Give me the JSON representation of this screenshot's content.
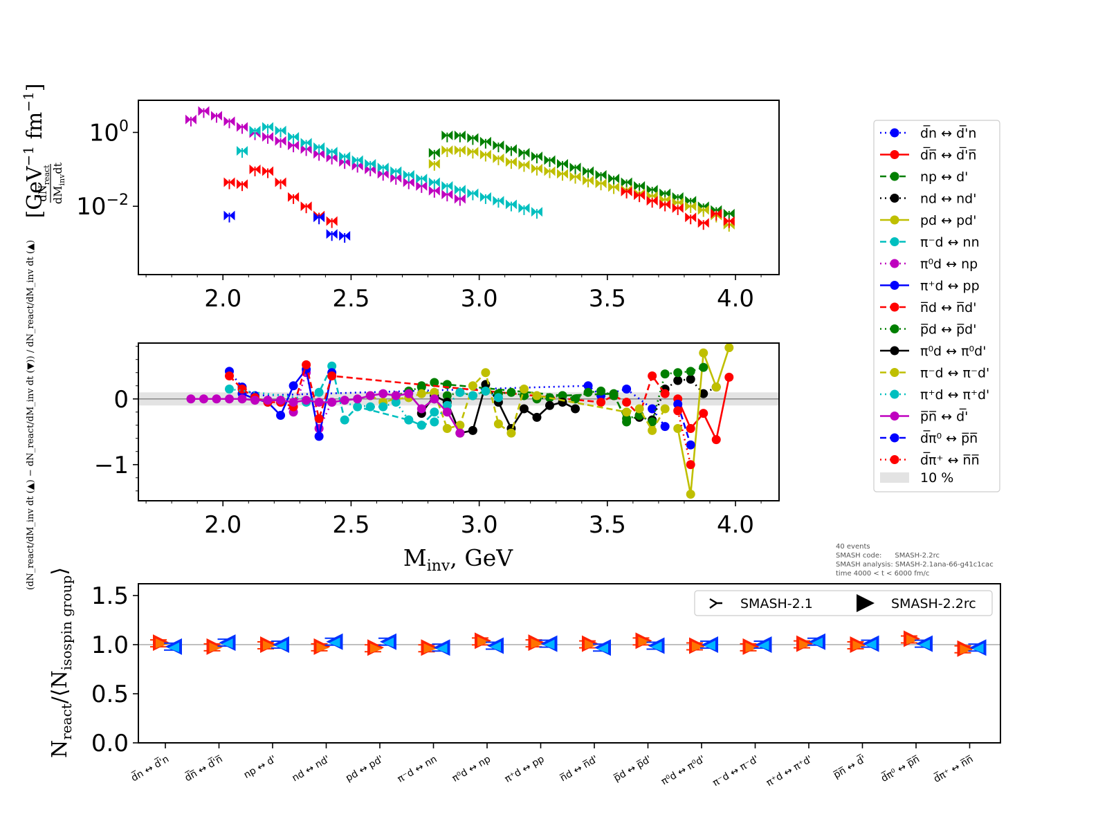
{
  "chart_data": [
    {
      "type": "scatter",
      "panel": "top",
      "ylabel": "dN_react/(dM_inv dt) [GeV^-1 fm^-1]",
      "ylabel_text": {
        "prefix_num": "dN",
        "num_sub": "react",
        "den_a": "dM",
        "den_sub": "inv",
        "den_b": "dt",
        "unit": "[GeV",
        "unit_exp": "−1",
        "unit_mid": " fm",
        "unit_exp2": "−1",
        "unit_end": "]"
      },
      "yscale": "log",
      "xlim": [
        1.67,
        4.17
      ],
      "ylim_log10": [
        -3.85,
        0.87
      ],
      "xticks": [
        "2.0",
        "2.5",
        "3.0",
        "3.5",
        "4.0"
      ],
      "yticks": [
        {
          "base": "10",
          "exp": "0",
          "value": 0
        },
        {
          "base": "10",
          "exp": "−2",
          "value": -2
        }
      ],
      "series": [
        {
          "x": [
            1.875,
            1.925,
            1.975,
            2.025,
            2.075,
            2.125,
            2.175,
            2.225,
            2.275,
            2.325,
            2.375,
            2.425,
            2.475,
            2.525,
            2.575,
            2.625,
            2.675,
            2.725,
            2.775,
            2.825,
            2.875,
            2.925
          ],
          "log10y": [
            0.35,
            0.58,
            0.45,
            0.3,
            0.15,
            -0.02,
            -0.12,
            -0.23,
            -0.35,
            -0.45,
            -0.58,
            -0.68,
            -0.8,
            -0.9,
            -1.0,
            -1.12,
            -1.23,
            -1.35,
            -1.45,
            -1.58,
            -1.68,
            -1.8
          ],
          "color": "#bf00bf"
        },
        {
          "x": [
            2.075,
            2.125,
            2.175,
            2.225,
            2.275,
            2.325,
            2.375,
            2.425,
            2.475,
            2.525,
            2.575,
            2.625,
            2.675,
            2.725,
            2.775,
            2.825,
            2.875,
            2.925,
            2.975,
            3.025,
            3.075,
            3.125,
            3.175,
            3.225
          ],
          "log10y": [
            -0.5,
            0.05,
            0.15,
            0.05,
            -0.12,
            -0.28,
            -0.4,
            -0.52,
            -0.65,
            -0.75,
            -0.85,
            -0.95,
            -1.05,
            -1.15,
            -1.25,
            -1.35,
            -1.45,
            -1.55,
            -1.65,
            -1.75,
            -1.85,
            -1.95,
            -2.05,
            -2.15
          ],
          "color": "#00bfbf"
        },
        {
          "x": [
            2.025,
            2.075,
            2.125,
            2.175,
            2.225,
            2.275,
            2.325,
            2.375,
            2.425
          ],
          "log10y": [
            -1.35,
            -1.4,
            -1.0,
            -1.05,
            -1.35,
            -1.75,
            -2.0,
            -2.25,
            -2.4
          ],
          "color": "#ff0000"
        },
        {
          "x": [
            2.025,
            2.375,
            2.425,
            2.475
          ],
          "log10y": [
            -2.25,
            -2.3,
            -2.75,
            -2.8
          ],
          "color": "#0000ff"
        },
        {
          "x": [
            2.825,
            2.875,
            2.925,
            2.975,
            3.025,
            3.075,
            3.125,
            3.175,
            3.225,
            3.275,
            3.325,
            3.375,
            3.425,
            3.475,
            3.525,
            3.575,
            3.625,
            3.675,
            3.725,
            3.775,
            3.825,
            3.875,
            3.925,
            3.975
          ],
          "log10y": [
            -0.55,
            -0.08,
            -0.08,
            -0.15,
            -0.25,
            -0.35,
            -0.45,
            -0.55,
            -0.65,
            -0.75,
            -0.85,
            -0.95,
            -1.05,
            -1.15,
            -1.25,
            -1.35,
            -1.45,
            -1.55,
            -1.65,
            -1.75,
            -1.85,
            -2.0,
            -2.1,
            -2.2
          ],
          "color": "#007f00"
        },
        {
          "x": [
            2.825,
            2.875,
            2.925,
            2.975,
            3.025,
            3.075,
            3.125,
            3.175,
            3.225,
            3.275,
            3.325,
            3.375,
            3.425,
            3.475,
            3.525,
            3.575,
            3.625,
            3.675,
            3.725,
            3.775,
            3.825,
            3.875,
            3.925,
            3.975
          ],
          "log10y": [
            -0.85,
            -0.48,
            -0.48,
            -0.52,
            -0.6,
            -0.7,
            -0.8,
            -0.88,
            -0.98,
            -1.05,
            -1.12,
            -1.2,
            -1.3,
            -1.38,
            -1.48,
            -1.55,
            -1.65,
            -1.72,
            -1.82,
            -1.9,
            -2.0,
            -2.1,
            -2.25,
            -2.5
          ],
          "color": "#bfbf00"
        },
        {
          "x": [
            3.575,
            3.625,
            3.675,
            3.725,
            3.775,
            3.825,
            3.875,
            3.925,
            3.975
          ],
          "log10y": [
            -1.6,
            -1.7,
            -1.85,
            -1.95,
            -2.05,
            -2.3,
            -2.45,
            -2.2,
            -2.4
          ],
          "color": "#ff0000"
        }
      ]
    },
    {
      "type": "line",
      "panel": "middle",
      "ylabel": "(dN_react/dM_inv dt (▲) − dN_react/dM_inv dt (▼)) / dN_react/dM_inv dt (▲)",
      "xlabel_main": "M",
      "xlabel_sub": "inv",
      "xlabel_rest": ", GeV",
      "xlim": [
        1.67,
        4.17
      ],
      "ylim": [
        -1.55,
        0.85
      ],
      "xticks": [
        "2.0",
        "2.5",
        "3.0",
        "3.5",
        "4.0"
      ],
      "yticks": [
        {
          "label": "0",
          "value": 0
        },
        {
          "label": "−1",
          "value": -1
        }
      ],
      "band": [
        -0.1,
        0.1
      ],
      "series": [
        {
          "name": "d̅n ↔ d̅'n",
          "color": "#0000ff",
          "dash": "2,5",
          "x": [
            2.025,
            2.075,
            2.125,
            3.425,
            3.475,
            3.575,
            3.675,
            3.725
          ],
          "y": [
            0.42,
            0.18,
            0.05,
            0.2,
            0.05,
            0.15,
            -0.15,
            -0.42
          ]
        },
        {
          "name": "d̅n̅ ↔ d̅'n̅",
          "color": "#ff0000",
          "dash": "",
          "x": [
            3.775,
            3.825,
            3.875,
            3.925,
            3.975
          ],
          "y": [
            0.0,
            -0.45,
            -0.22,
            -0.62,
            0.33
          ]
        },
        {
          "name": "np ↔ d'",
          "color": "#007f00",
          "dash": "9,5",
          "x": [
            2.775,
            2.825,
            2.875,
            3.325,
            3.525,
            3.575,
            3.625
          ],
          "y": [
            0.2,
            0.25,
            0.22,
            0.05,
            0.08,
            -0.35,
            -0.25
          ]
        },
        {
          "name": "nd ↔ nd'",
          "color": "#000000",
          "dash": "2,5",
          "x": [
            3.625,
            3.675,
            3.725,
            3.775,
            3.825,
            3.875,
            3.925
          ],
          "y": [
            -0.28,
            -0.32,
            0.15,
            0.28,
            0.3,
            0.08,
            0.18
          ]
        },
        {
          "name": "pd ↔ pd'",
          "color": "#bfbf00",
          "dash": "",
          "x": [
            3.775,
            3.825,
            3.875,
            3.925,
            3.975
          ],
          "y": [
            -0.45,
            -1.45,
            0.7,
            0.18,
            0.78
          ]
        },
        {
          "name": "π⁻d ↔ nn",
          "color": "#00bfbf",
          "dash": "9,5",
          "x": [
            2.325,
            2.375,
            2.425,
            2.475,
            2.525,
            2.725,
            2.775,
            2.825
          ],
          "y": [
            -0.05,
            0.1,
            0.5,
            -0.32,
            -0.12,
            -0.32,
            -0.4,
            -0.2
          ]
        },
        {
          "name": "π⁰d ↔ np",
          "color": "#bf00bf",
          "dash": "2,5",
          "x": [
            2.225,
            2.275,
            2.325,
            2.375,
            2.425
          ],
          "y": [
            -0.05,
            -0.2,
            0.4,
            -0.45,
            -0.05
          ]
        },
        {
          "name": "π⁺d ↔ pp",
          "color": "#0000ff",
          "dash": "",
          "x": [
            2.075,
            2.125,
            2.175,
            2.225,
            2.275,
            2.325,
            2.375,
            2.425
          ],
          "y": [
            0.08,
            0.0,
            -0.05,
            -0.25,
            0.2,
            0.45,
            -0.57,
            0.4
          ]
        },
        {
          "name": "n̅d ↔ n̅d'",
          "color": "#ff0000",
          "dash": "9,5",
          "x": [
            2.025,
            2.075,
            2.125,
            2.175,
            2.225,
            2.275,
            2.325,
            2.375,
            2.425,
            3.475,
            3.525,
            3.575,
            3.625,
            3.675,
            3.725
          ],
          "y": [
            0.35,
            0.15,
            0.02,
            -0.05,
            -0.05,
            -0.12,
            0.52,
            -0.3,
            0.35,
            -0.05,
            0.05,
            -0.05,
            -0.25,
            0.35,
            0.08
          ]
        },
        {
          "name": "p̅d ↔ p̅d'",
          "color": "#007f00",
          "dash": "2,5",
          "x": [
            2.675,
            2.725,
            2.775,
            2.825,
            2.875,
            2.925,
            2.975,
            3.025,
            3.075,
            3.125,
            3.175,
            3.225,
            3.275,
            3.325,
            3.375,
            3.425,
            3.475,
            3.525,
            3.575,
            3.625,
            3.675,
            3.725,
            3.775,
            3.825,
            3.875
          ],
          "y": [
            0.05,
            0.12,
            0.18,
            0.0,
            0.05,
            0.1,
            0.05,
            0.12,
            0.08,
            0.1,
            0.05,
            0.0,
            0.02,
            0.05,
            0.0,
            0.1,
            0.12,
            0.05,
            -0.3,
            -0.25,
            -0.35,
            0.38,
            0.4,
            0.42,
            0.48
          ]
        },
        {
          "name": "π⁰d ↔ π⁰d'",
          "color": "#000000",
          "dash": "",
          "x": [
            2.775,
            2.825,
            2.875,
            2.925,
            2.975,
            3.025,
            3.075,
            3.125,
            3.175,
            3.225,
            3.275,
            3.325,
            3.375
          ],
          "y": [
            -0.22,
            0.05,
            -0.05,
            -0.52,
            -0.48,
            0.22,
            -0.05,
            -0.45,
            -0.15,
            -0.28,
            -0.1,
            -0.05,
            -0.15
          ]
        },
        {
          "name": "π⁻d ↔ π⁻d'",
          "color": "#bfbf00",
          "dash": "9,5",
          "x": [
            2.575,
            2.625,
            2.675,
            2.725,
            2.775,
            2.825,
            2.875,
            2.925,
            2.975,
            3.025,
            3.075,
            3.125,
            3.175,
            3.225,
            3.575,
            3.625,
            3.675,
            3.725
          ],
          "y": [
            0.05,
            -0.05,
            0.0,
            0.02,
            0.08,
            0.1,
            -0.45,
            -0.4,
            0.2,
            0.4,
            -0.38,
            -0.52,
            0.15,
            0.05,
            -0.2,
            -0.15,
            -0.48,
            -0.15
          ]
        },
        {
          "name": "π⁺d ↔ π⁺d'",
          "color": "#00bfbf",
          "dash": "2,5",
          "x": [
            2.025,
            2.575,
            2.625,
            2.675,
            2.725,
            2.775,
            2.825,
            2.875,
            2.925,
            2.975,
            3.025,
            3.075
          ],
          "y": [
            0.15,
            -0.12,
            -0.12,
            -0.05,
            -0.32,
            -0.4,
            -0.35,
            -0.1,
            0.1,
            0.05,
            0.12,
            0.02
          ]
        },
        {
          "name": "p̅n̅ ↔ d̅'",
          "color": "#bf00bf",
          "dash": "",
          "x": [
            1.875,
            1.925,
            1.975,
            2.025,
            2.075,
            2.125,
            2.175,
            2.225,
            2.275,
            2.325,
            2.375,
            2.425,
            2.475,
            2.525,
            2.575,
            2.625,
            2.675,
            2.725,
            2.775,
            2.825,
            2.875,
            2.925
          ],
          "y": [
            0.0,
            0.0,
            0.0,
            0.0,
            0.0,
            -0.02,
            -0.02,
            -0.02,
            -0.05,
            -0.02,
            -0.05,
            -0.05,
            -0.02,
            0.0,
            0.05,
            0.08,
            0.05,
            0.08,
            -0.15,
            0.0,
            -0.2,
            -0.52
          ]
        },
        {
          "name": "d̅π⁰ ↔ p̅n̅",
          "color": "#0000ff",
          "dash": "9,5",
          "x": [
            3.775,
            3.825
          ],
          "y": [
            -0.08,
            -0.7
          ]
        },
        {
          "name": "d̅π⁺ ↔ n̅n̅",
          "color": "#ff0000",
          "dash": "2,5",
          "x": [
            3.775,
            3.825
          ],
          "y": [
            -0.18,
            -1.0
          ]
        }
      ]
    },
    {
      "type": "scatter",
      "panel": "bottom",
      "ylabel_main": "N",
      "ylabel_sub1": "react",
      "ylabel_mid": "/⟨N",
      "ylabel_sub2": "isospin group",
      "ylabel_end": "⟩",
      "ylim": [
        0.0,
        1.62
      ],
      "yticks": [
        "0.0",
        "0.5",
        "1.0",
        "1.5"
      ],
      "categories": [
        "d̅n ↔ d̅'n",
        "d̅n̅ ↔ d̅'n̅",
        "np ↔ d'",
        "nd ↔ nd'",
        "pd ↔ pd'",
        "π⁻d ↔ nn",
        "π⁰d ↔ np",
        "π⁺d ↔ pp",
        "n̅d ↔ n̅d'",
        "p̅d ↔ p̅d'",
        "π⁰d ↔ π⁰d'",
        "π⁻d ↔ π⁻d'",
        "π⁺d ↔ π⁺d'",
        "p̅n̅ ↔ d̅'",
        "d̅π⁰ ↔ p̅n̅",
        "d̅π⁺ ↔ n̅n̅"
      ],
      "series": [
        {
          "name": "SMASH-2.1",
          "values_up": [
            1.03,
            0.98,
            1.0,
            0.99,
            0.97,
            0.98,
            1.03,
            1.02,
            1.01,
            1.04,
            0.99,
            0.98,
            1.01,
            1.0,
            1.06,
            0.96
          ],
          "values_down": [
            0.97,
            1.02,
            1.0,
            1.02,
            1.02,
            0.97,
            0.99,
            1.01,
            0.97,
            1.0,
            1.0,
            1.0,
            1.03,
            1.01,
            1.01,
            0.97
          ]
        },
        {
          "name": "SMASH-2.2rc",
          "values_up": [
            1.02,
            0.98,
            1.0,
            0.98,
            0.97,
            0.97,
            1.04,
            1.02,
            1.01,
            1.04,
            0.99,
            0.98,
            1.01,
            1.0,
            1.06,
            0.96
          ],
          "values_down": [
            0.98,
            1.02,
            1.0,
            1.03,
            1.03,
            0.97,
            0.99,
            1.01,
            0.97,
            0.99,
            1.0,
            1.0,
            1.03,
            1.01,
            1.01,
            0.97
          ]
        }
      ]
    }
  ],
  "legend": {
    "band_label": "10 %",
    "band_color": "#e3e3e3"
  },
  "info": {
    "line1": "40 events",
    "line2": "SMASH code:      SMASH-2.2rc",
    "line3": "SMASH analysis: SMASH-2.1ana-66-g41c1cac",
    "line4": "time 4000 < t < 6000 fm/c"
  }
}
